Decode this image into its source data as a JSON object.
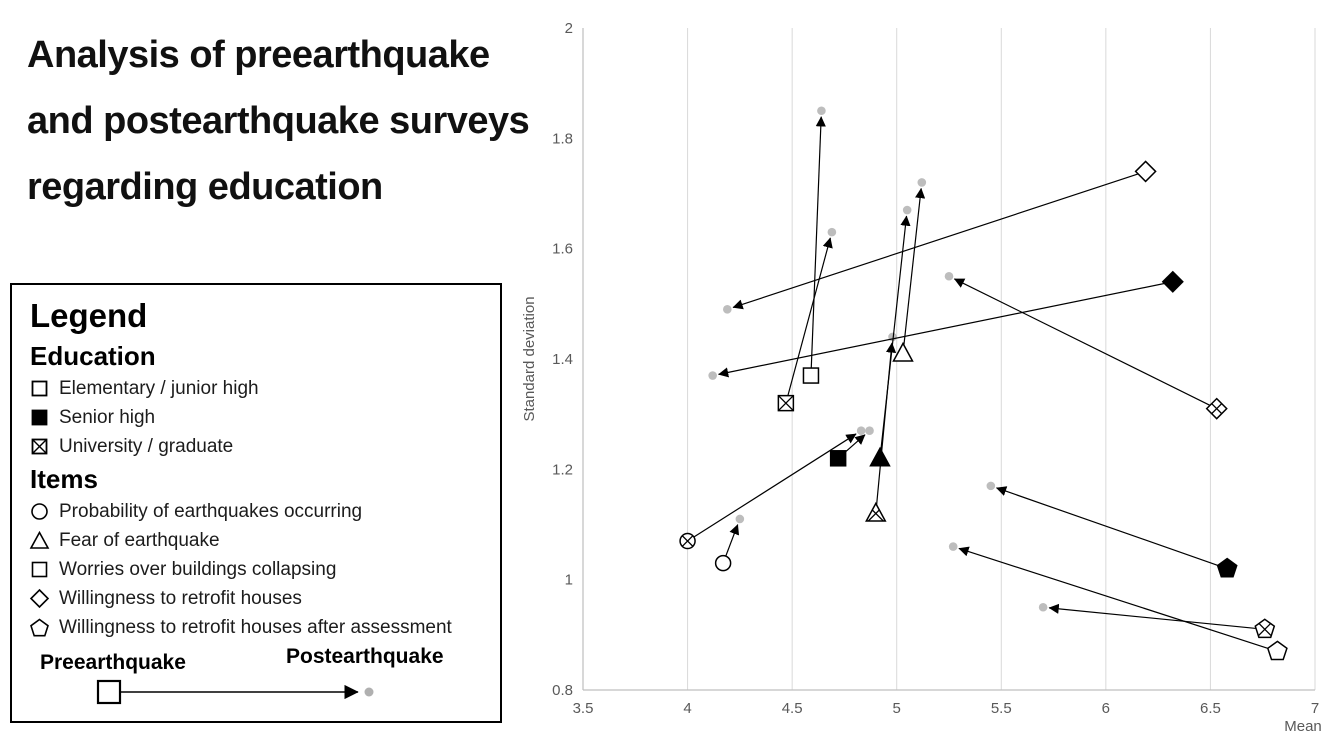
{
  "page": {
    "title_lines": [
      "Analysis of preearthquake",
      "and postearthquake surveys",
      "regarding education"
    ]
  },
  "legend": {
    "title": "Legend",
    "education_title": "Education",
    "education_items": [
      {
        "symbol": "open-square",
        "label": "Elementary / junior high"
      },
      {
        "symbol": "filled-square",
        "label": "Senior high"
      },
      {
        "symbol": "x-square",
        "label": "University / graduate"
      }
    ],
    "items_title": "Items",
    "item_list": [
      {
        "symbol": "circle",
        "label": "Probability of earthquakes occurring"
      },
      {
        "symbol": "triangle",
        "label": "Fear of earthquake"
      },
      {
        "symbol": "square",
        "label": "Worries over buildings collapsing"
      },
      {
        "symbol": "diamond",
        "label": "Willingness to retrofit houses"
      },
      {
        "symbol": "pentagon",
        "label": "Willingness to retrofit houses after assessment"
      }
    ],
    "pre_label": "Preearthquake",
    "post_label": "Postearthquake"
  },
  "chart_data": {
    "type": "scatter",
    "title": "Analysis of preearthquake and postearthquake surveys regarding education",
    "xlabel": "Mean",
    "ylabel": "Standard deviation",
    "xlim": [
      3.5,
      7
    ],
    "ylim": [
      0.8,
      2
    ],
    "x_tick_values": [
      3.5,
      4,
      4.5,
      5,
      5.5,
      6,
      6.5,
      7
    ],
    "x_tick_labels": [
      "3.5",
      "4",
      "4.5",
      "5",
      "5.5",
      "6",
      "6.5",
      "7"
    ],
    "y_tick_values": [
      0.8,
      1,
      1.2,
      1.4,
      1.6,
      1.8,
      2
    ],
    "y_tick_labels": [
      "0.8",
      "1",
      "1.2",
      "1.4",
      "1.6",
      "1.8",
      "2"
    ],
    "grid": "vertical-only",
    "legend_position": "left",
    "colors": {
      "marker": "#000000",
      "post_dot": "#bdbdbd",
      "gridline": "#d9d9d9",
      "axis": "#bfbfbf",
      "tick_label": "#595959"
    },
    "arrow_semantics": "Each arrow goes from preearthquake (shape marker) to postearthquake (gray dot) position; [mean, standard deviation]",
    "arrows": [
      {
        "item": "probability-of-earthquakes",
        "education": "elementary",
        "shape": "circle",
        "fill": "open",
        "pre": [
          4.17,
          1.03
        ],
        "post": [
          4.25,
          1.11
        ]
      },
      {
        "item": "probability-of-earthquakes",
        "education": "university",
        "shape": "circle",
        "fill": "x",
        "pre": [
          4.0,
          1.07
        ],
        "post": [
          4.83,
          1.27
        ]
      },
      {
        "item": "worries-buildings-collapsing",
        "education": "elementary",
        "shape": "square",
        "fill": "open",
        "pre": [
          4.59,
          1.37
        ],
        "post": [
          4.64,
          1.85
        ]
      },
      {
        "item": "worries-buildings-collapsing",
        "education": "senior",
        "shape": "square",
        "fill": "filled",
        "pre": [
          4.72,
          1.22
        ],
        "post": [
          4.87,
          1.27
        ]
      },
      {
        "item": "worries-buildings-collapsing",
        "education": "university",
        "shape": "square",
        "fill": "x",
        "pre": [
          4.47,
          1.32
        ],
        "post": [
          4.69,
          1.63
        ]
      },
      {
        "item": "fear-of-earthquake",
        "education": "elementary",
        "shape": "triangle",
        "fill": "open",
        "pre": [
          5.03,
          1.41
        ],
        "post": [
          5.12,
          1.72
        ]
      },
      {
        "item": "fear-of-earthquake",
        "education": "senior",
        "shape": "triangle",
        "fill": "filled",
        "pre": [
          4.92,
          1.22
        ],
        "post": [
          5.05,
          1.67
        ]
      },
      {
        "item": "fear-of-earthquake",
        "education": "university",
        "shape": "triangle",
        "fill": "x",
        "pre": [
          4.9,
          1.12
        ],
        "post": [
          4.98,
          1.44
        ]
      },
      {
        "item": "willingness-to-retrofit",
        "education": "elementary",
        "shape": "diamond",
        "fill": "open",
        "pre": [
          6.19,
          1.74
        ],
        "post": [
          4.19,
          1.49
        ]
      },
      {
        "item": "willingness-to-retrofit",
        "education": "senior",
        "shape": "diamond",
        "fill": "filled",
        "pre": [
          6.32,
          1.54
        ],
        "post": [
          4.12,
          1.37
        ]
      },
      {
        "item": "willingness-to-retrofit",
        "education": "university",
        "shape": "diamond",
        "fill": "x",
        "pre": [
          6.53,
          1.31
        ],
        "post": [
          5.25,
          1.55
        ]
      },
      {
        "item": "willingness-to-retrofit-after-assessment",
        "education": "elementary",
        "shape": "pentagon",
        "fill": "open",
        "pre": [
          6.82,
          0.87
        ],
        "post": [
          5.27,
          1.06
        ]
      },
      {
        "item": "willingness-to-retrofit-after-assessment",
        "education": "senior",
        "shape": "pentagon",
        "fill": "filled",
        "pre": [
          6.58,
          1.02
        ],
        "post": [
          5.45,
          1.17
        ]
      },
      {
        "item": "willingness-to-retrofit-after-assessment",
        "education": "university",
        "shape": "pentagon",
        "fill": "x",
        "pre": [
          6.76,
          0.91
        ],
        "post": [
          5.7,
          0.95
        ]
      }
    ]
  }
}
